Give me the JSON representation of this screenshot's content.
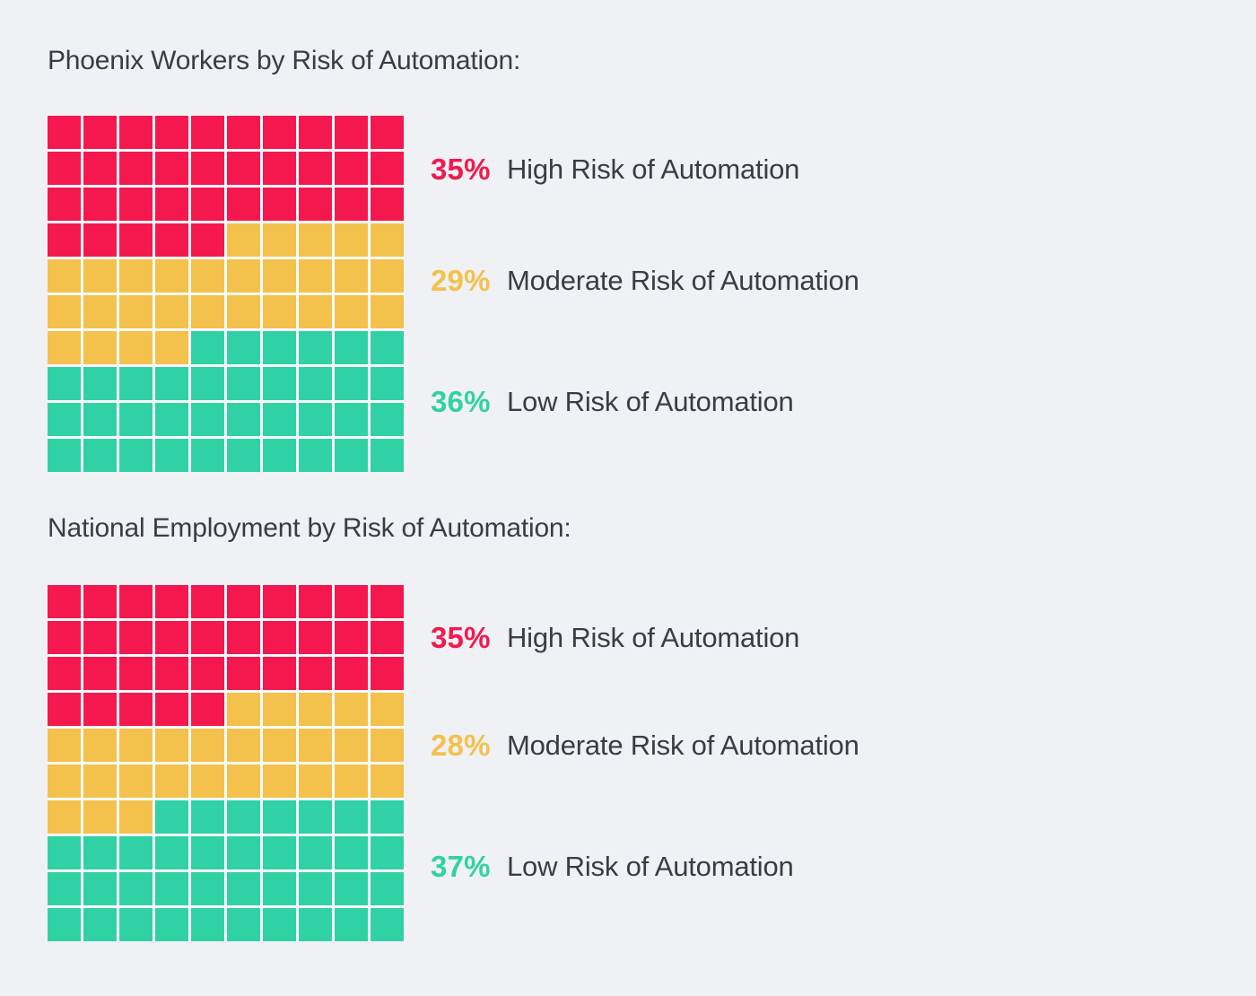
{
  "page": {
    "background_color": "#F0F1F4",
    "text_color": "#3A3D42",
    "grid_gap_color": "#FAFBFC"
  },
  "chart_data": [
    {
      "type": "waffle",
      "title": "Phoenix Workers by Risk of Automation:",
      "grid": {
        "rows": 10,
        "cols": 10,
        "square_unit_percent": 1,
        "fill_order": "row-major from top-left"
      },
      "legend_position": "right",
      "series": [
        {
          "name": "High Risk of Automation",
          "percent_label": "35%",
          "value": 35,
          "color": "#F4184E"
        },
        {
          "name": "Moderate Risk of Automation",
          "percent_label": "29%",
          "value": 29,
          "color": "#F3C14C"
        },
        {
          "name": "Low Risk of Automation",
          "percent_label": "36%",
          "value": 36,
          "color": "#30D2A5"
        }
      ]
    },
    {
      "type": "waffle",
      "title": "National Employment by Risk of Automation:",
      "grid": {
        "rows": 10,
        "cols": 10,
        "square_unit_percent": 1,
        "fill_order": "row-major from top-left"
      },
      "legend_position": "right",
      "series": [
        {
          "name": "High Risk of Automation",
          "percent_label": "35%",
          "value": 35,
          "color": "#F4184E"
        },
        {
          "name": "Moderate Risk of Automation",
          "percent_label": "28%",
          "value": 28,
          "color": "#F3C14C"
        },
        {
          "name": "Low Risk of Automation",
          "percent_label": "37%",
          "value": 37,
          "color": "#30D2A5"
        }
      ]
    }
  ]
}
